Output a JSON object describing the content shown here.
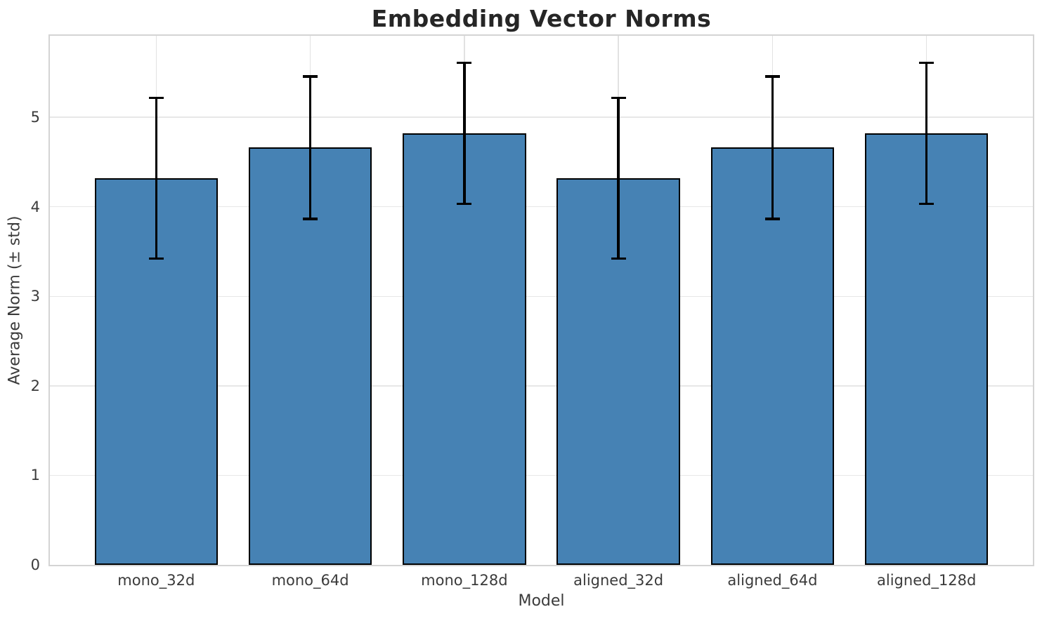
{
  "chart_data": {
    "type": "bar",
    "title": "Embedding Vector Norms",
    "xlabel": "Model",
    "ylabel": "Average Norm (± std)",
    "categories": [
      "mono_32d",
      "mono_64d",
      "mono_128d",
      "aligned_32d",
      "aligned_64d",
      "aligned_128d"
    ],
    "values": [
      4.32,
      4.66,
      4.82,
      4.32,
      4.66,
      4.82
    ],
    "errors": [
      0.91,
      0.81,
      0.8,
      0.91,
      0.81,
      0.8
    ],
    "yticks": [
      0,
      1,
      2,
      3,
      4,
      5
    ],
    "ylim": [
      0,
      5.91
    ],
    "xlim": [
      -0.69,
      5.69
    ],
    "bar_width": 0.8,
    "grid": true,
    "legend": "none",
    "bar_color": "#4682b4",
    "bar_edge_color": "#000000",
    "error_color": "#000000",
    "grid_color": "#e7e7e7",
    "spine_color": "#d4d4d4",
    "tick_color": "#3b3b3b",
    "title_color": "#262626"
  }
}
